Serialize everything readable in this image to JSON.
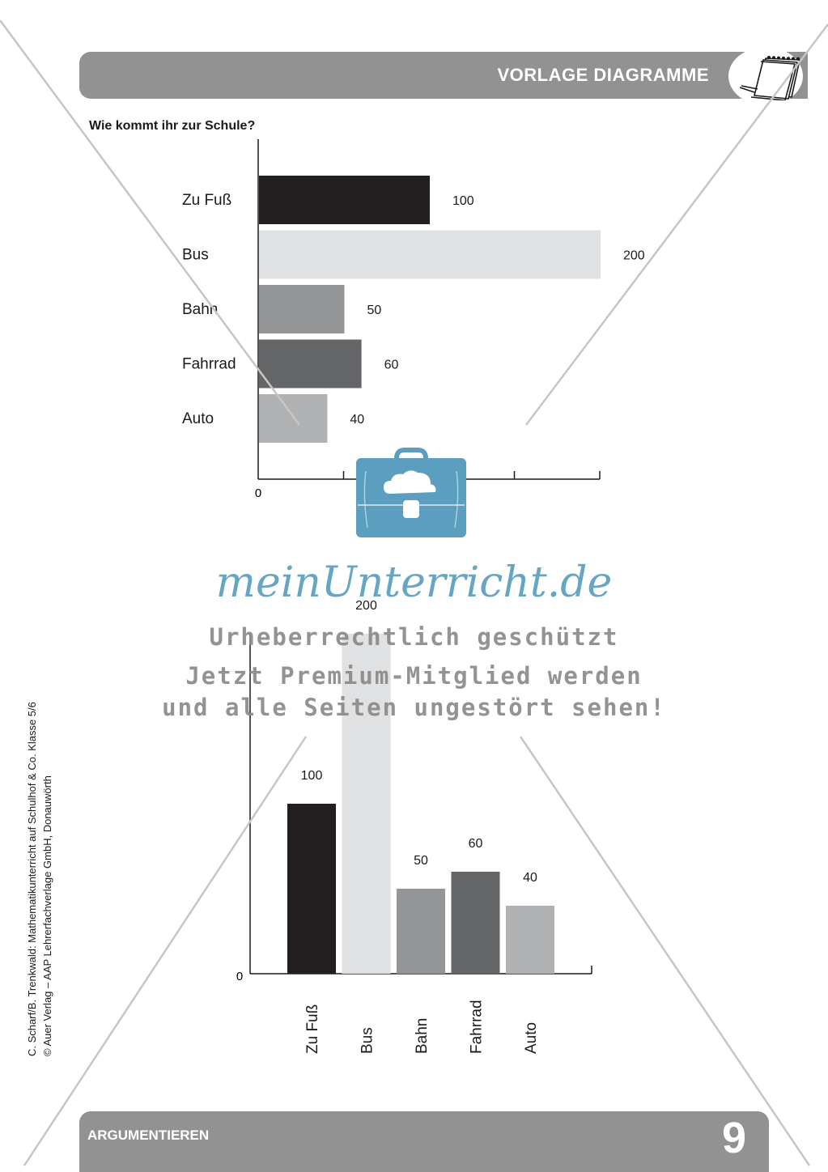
{
  "header": {
    "title": "VORLAGE DIAGRAMME",
    "icon": "notepad-icon"
  },
  "question": "Wie kommt ihr zur Schule?",
  "chart_data": [
    {
      "type": "bar",
      "orientation": "horizontal",
      "categories": [
        "Zu Fuß",
        "Bus",
        "Bahn",
        "Fahrrad",
        "Auto"
      ],
      "values": [
        100,
        200,
        50,
        60,
        40
      ],
      "colors": [
        "#231f20",
        "#e0e1e2",
        "#949597",
        "#646567",
        "#b0b1b3"
      ],
      "axis_label_zero": "0",
      "xlim": [
        0,
        200
      ]
    },
    {
      "type": "bar",
      "orientation": "vertical",
      "categories": [
        "Zu Fuß",
        "Bus",
        "Bahn",
        "Fahrrad",
        "Auto"
      ],
      "values": [
        100,
        200,
        50,
        60,
        40
      ],
      "colors": [
        "#231f20",
        "#e0e1e2",
        "#949597",
        "#646567",
        "#b0b1b3"
      ],
      "axis_label_zero": "0",
      "ylim": [
        0,
        200
      ]
    }
  ],
  "side_text": {
    "line1": "C. Scharf/B. Trenkwald: Mathematikunterricht auf Schulhof & Co. Klasse 5/6",
    "line2": "© Auer Verlag – AAP Lehrerfachverlage GmbH, Donauwörth"
  },
  "footer": {
    "label": "ARGUMENTIEREN",
    "page_number": "9"
  },
  "watermark": {
    "brand": "meinUnterricht.de",
    "line1": "Urheberrechtlich geschützt",
    "line2": "Jetzt Premium-Mitglied werden",
    "line3": "und alle Seiten ungestört sehen!",
    "logo_icon": "briefcase-cloud-icon"
  }
}
